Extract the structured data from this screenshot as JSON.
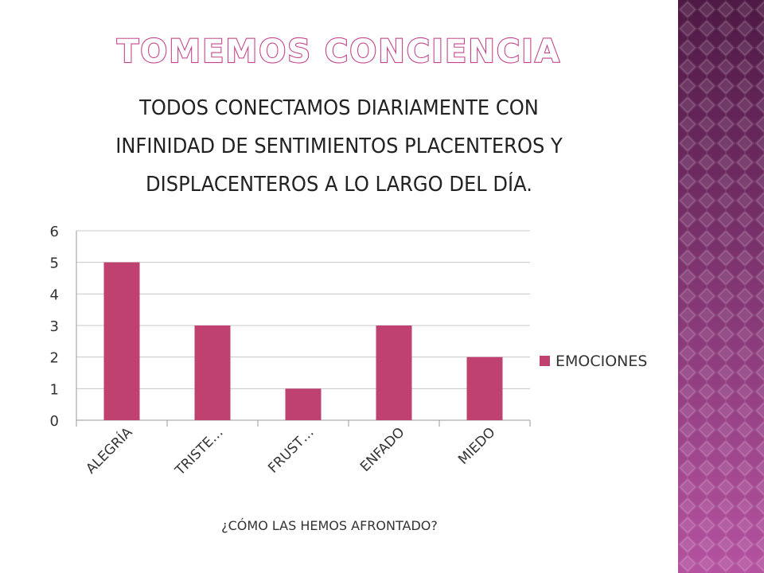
{
  "slide": {
    "title": "TOMEMOS CONCIENCIA",
    "body_lines": [
      "TODOS CONECTAMOS DIARIAMENTE CON",
      "INFINIDAD DE SENTIMIENTOS PLACENTEROS Y",
      "DISPLACENTEROS A LO LARGO DEL DÍA."
    ],
    "title_color": "#c2458c",
    "sidebar_colors": [
      "#5a1e4e",
      "#b0509a"
    ]
  },
  "chart_data": {
    "type": "bar",
    "categories": [
      "ALEGRÍA",
      "TRISTE…",
      "FRUST…",
      "ENFADO",
      "MIEDO"
    ],
    "series": [
      {
        "name": "EMOCIONES",
        "values": [
          5,
          3,
          1,
          3,
          2
        ],
        "color": "#be4170"
      }
    ],
    "ylim": [
      0,
      6
    ],
    "yticks": [
      "0",
      "1",
      "2",
      "3",
      "4",
      "5",
      "6"
    ],
    "xlabel": "¿CÓMO LAS HEMOS AFRONTADO?",
    "ylabel": "",
    "grid": true,
    "legend": "right"
  }
}
